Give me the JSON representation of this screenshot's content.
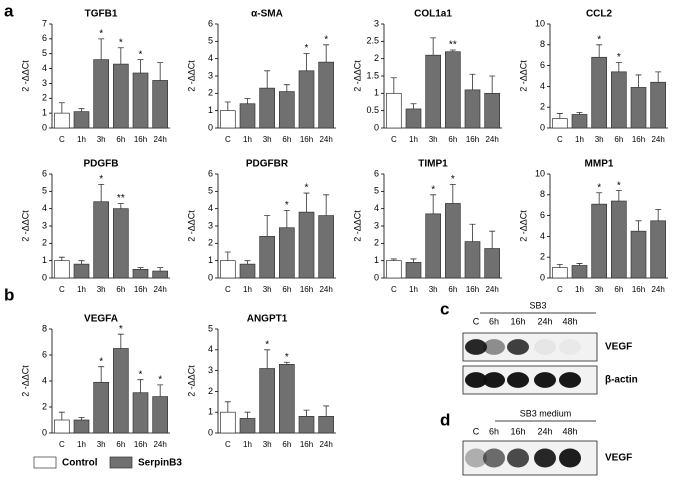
{
  "panels": [
    "a",
    "b"
  ],
  "legend": [
    {
      "name": "Control",
      "color": "#ffffff"
    },
    {
      "name": "SerpinB3",
      "color": "#707070"
    }
  ],
  "blots": [
    {
      "panel": "c",
      "header": "SB3",
      "lanes": [
        "C",
        "6h",
        "16h",
        "24h",
        "48h"
      ],
      "rows": [
        "VEGF",
        "β-actin"
      ]
    },
    {
      "panel": "d",
      "header": "SB3 medium",
      "lanes": [
        "C",
        "6h",
        "16h",
        "24h",
        "48h"
      ],
      "rows": [
        "VEGF"
      ]
    }
  ],
  "chart_data": [
    {
      "type": "bar",
      "title": "TGFB1",
      "ylabel": "2 -ΔΔCt",
      "categories": [
        "C",
        "1h",
        "3h",
        "6h",
        "16h",
        "24h"
      ],
      "values": [
        1.0,
        1.1,
        4.6,
        4.3,
        3.7,
        3.2
      ],
      "errors": [
        0.7,
        0.2,
        1.4,
        1.1,
        0.9,
        1.2
      ],
      "annotations": [
        null,
        null,
        "*",
        "*",
        "*",
        null
      ],
      "colors": [
        "#ffffff",
        "#707070",
        "#707070",
        "#707070",
        "#707070",
        "#707070"
      ],
      "ylim": [
        0,
        7
      ],
      "yticks": [
        0,
        1,
        2,
        3,
        4,
        5,
        6,
        7
      ]
    },
    {
      "type": "bar",
      "title": "α-SMA",
      "ylabel": "2 -ΔΔCt",
      "categories": [
        "C",
        "1h",
        "3h",
        "6h",
        "16h",
        "24h"
      ],
      "values": [
        1.0,
        1.4,
        2.3,
        2.1,
        3.3,
        3.8
      ],
      "errors": [
        0.5,
        0.3,
        1.0,
        0.4,
        1.0,
        1.0
      ],
      "annotations": [
        null,
        null,
        null,
        null,
        "*",
        "*"
      ],
      "colors": [
        "#ffffff",
        "#707070",
        "#707070",
        "#707070",
        "#707070",
        "#707070"
      ],
      "ylim": [
        0,
        6
      ],
      "yticks": [
        0,
        1,
        2,
        3,
        4,
        5,
        6
      ]
    },
    {
      "type": "bar",
      "title": "COL1a1",
      "ylabel": "2 -ΔΔCt",
      "categories": [
        "C",
        "1h",
        "3h",
        "6h",
        "16h",
        "24h"
      ],
      "values": [
        1.0,
        0.55,
        2.1,
        2.2,
        1.1,
        1.0
      ],
      "errors": [
        0.45,
        0.15,
        0.5,
        0.05,
        0.45,
        0.5
      ],
      "annotations": [
        null,
        null,
        null,
        "**",
        null,
        null
      ],
      "colors": [
        "#ffffff",
        "#707070",
        "#707070",
        "#707070",
        "#707070",
        "#707070"
      ],
      "ylim": [
        0,
        3
      ],
      "yticks": [
        0,
        0.5,
        1,
        1.5,
        2,
        2.5,
        3
      ]
    },
    {
      "type": "bar",
      "title": "CCL2",
      "ylabel": "2 -ΔΔCt",
      "categories": [
        "C",
        "1h",
        "3h",
        "6h",
        "16h",
        "24h"
      ],
      "values": [
        0.9,
        1.3,
        6.8,
        5.4,
        3.9,
        4.4
      ],
      "errors": [
        0.5,
        0.2,
        1.2,
        0.9,
        1.2,
        1.0
      ],
      "annotations": [
        null,
        null,
        "*",
        "*",
        null,
        null
      ],
      "colors": [
        "#ffffff",
        "#707070",
        "#707070",
        "#707070",
        "#707070",
        "#707070"
      ],
      "ylim": [
        0,
        10
      ],
      "yticks": [
        0,
        2,
        4,
        6,
        8,
        10
      ]
    },
    {
      "type": "bar",
      "title": "PDGFB",
      "ylabel": "2 -ΔΔCt",
      "categories": [
        "C",
        "1h",
        "3h",
        "6h",
        "16h",
        "24h"
      ],
      "values": [
        1.0,
        0.8,
        4.4,
        4.0,
        0.5,
        0.4
      ],
      "errors": [
        0.2,
        0.2,
        1.0,
        0.3,
        0.1,
        0.2
      ],
      "annotations": [
        null,
        null,
        "*",
        "**",
        null,
        null
      ],
      "colors": [
        "#ffffff",
        "#707070",
        "#707070",
        "#707070",
        "#707070",
        "#707070"
      ],
      "ylim": [
        0,
        6
      ],
      "yticks": [
        0,
        1,
        2,
        3,
        4,
        5,
        6
      ]
    },
    {
      "type": "bar",
      "title": "PDGFBR",
      "ylabel": "2 -ΔΔCt",
      "categories": [
        "C",
        "1h",
        "3h",
        "6h",
        "16h",
        "24h"
      ],
      "values": [
        1.0,
        0.8,
        2.4,
        2.9,
        3.8,
        3.6
      ],
      "errors": [
        0.5,
        0.2,
        1.2,
        1.0,
        1.1,
        1.2
      ],
      "annotations": [
        null,
        null,
        null,
        "*",
        "*",
        null
      ],
      "colors": [
        "#ffffff",
        "#707070",
        "#707070",
        "#707070",
        "#707070",
        "#707070"
      ],
      "ylim": [
        0,
        6
      ],
      "yticks": [
        0,
        1,
        2,
        3,
        4,
        5,
        6
      ]
    },
    {
      "type": "bar",
      "title": "TIMP1",
      "ylabel": "2 -ΔΔCt",
      "categories": [
        "C",
        "1h",
        "3h",
        "6h",
        "16h",
        "24h"
      ],
      "values": [
        1.0,
        0.9,
        3.7,
        4.3,
        2.1,
        1.7
      ],
      "errors": [
        0.1,
        0.2,
        1.1,
        1.1,
        1.0,
        1.0
      ],
      "annotations": [
        null,
        null,
        "*",
        "*",
        null,
        null
      ],
      "colors": [
        "#ffffff",
        "#707070",
        "#707070",
        "#707070",
        "#707070",
        "#707070"
      ],
      "ylim": [
        0,
        6
      ],
      "yticks": [
        0,
        1,
        2,
        3,
        4,
        5,
        6
      ]
    },
    {
      "type": "bar",
      "title": "MMP1",
      "ylabel": "2 -ΔΔCt",
      "categories": [
        "C",
        "1h",
        "3h",
        "6h",
        "16h",
        "24h"
      ],
      "values": [
        1.0,
        1.2,
        7.1,
        7.4,
        4.5,
        5.5
      ],
      "errors": [
        0.3,
        0.2,
        1.1,
        1.0,
        1.0,
        1.1
      ],
      "annotations": [
        null,
        null,
        "*",
        "*",
        null,
        null
      ],
      "colors": [
        "#ffffff",
        "#707070",
        "#707070",
        "#707070",
        "#707070",
        "#707070"
      ],
      "ylim": [
        0,
        10
      ],
      "yticks": [
        0,
        2,
        4,
        6,
        8,
        10
      ]
    },
    {
      "type": "bar",
      "title": "VEGFA",
      "ylabel": "2 -ΔΔCt",
      "categories": [
        "C",
        "1h",
        "3h",
        "6h",
        "16h",
        "24h"
      ],
      "values": [
        1.0,
        1.0,
        3.9,
        6.5,
        3.1,
        2.8
      ],
      "errors": [
        0.6,
        0.2,
        1.2,
        1.1,
        1.0,
        0.9
      ],
      "annotations": [
        null,
        null,
        "*",
        "*",
        "*",
        "*"
      ],
      "colors": [
        "#ffffff",
        "#707070",
        "#707070",
        "#707070",
        "#707070",
        "#707070"
      ],
      "ylim": [
        0,
        8
      ],
      "yticks": [
        0,
        2,
        4,
        6,
        8
      ]
    },
    {
      "type": "bar",
      "title": "ANGPT1",
      "ylabel": "2 -ΔΔCt",
      "categories": [
        "C",
        "1h",
        "3h",
        "6h",
        "16h",
        "24h"
      ],
      "values": [
        1.0,
        0.7,
        3.1,
        3.3,
        0.8,
        0.8
      ],
      "errors": [
        0.5,
        0.3,
        0.9,
        0.1,
        0.3,
        0.5
      ],
      "annotations": [
        null,
        null,
        "*",
        "*",
        null,
        null
      ],
      "colors": [
        "#ffffff",
        "#707070",
        "#707070",
        "#707070",
        "#707070",
        "#707070"
      ],
      "ylim": [
        0,
        5
      ],
      "yticks": [
        0,
        1,
        2,
        3,
        4,
        5
      ]
    }
  ]
}
